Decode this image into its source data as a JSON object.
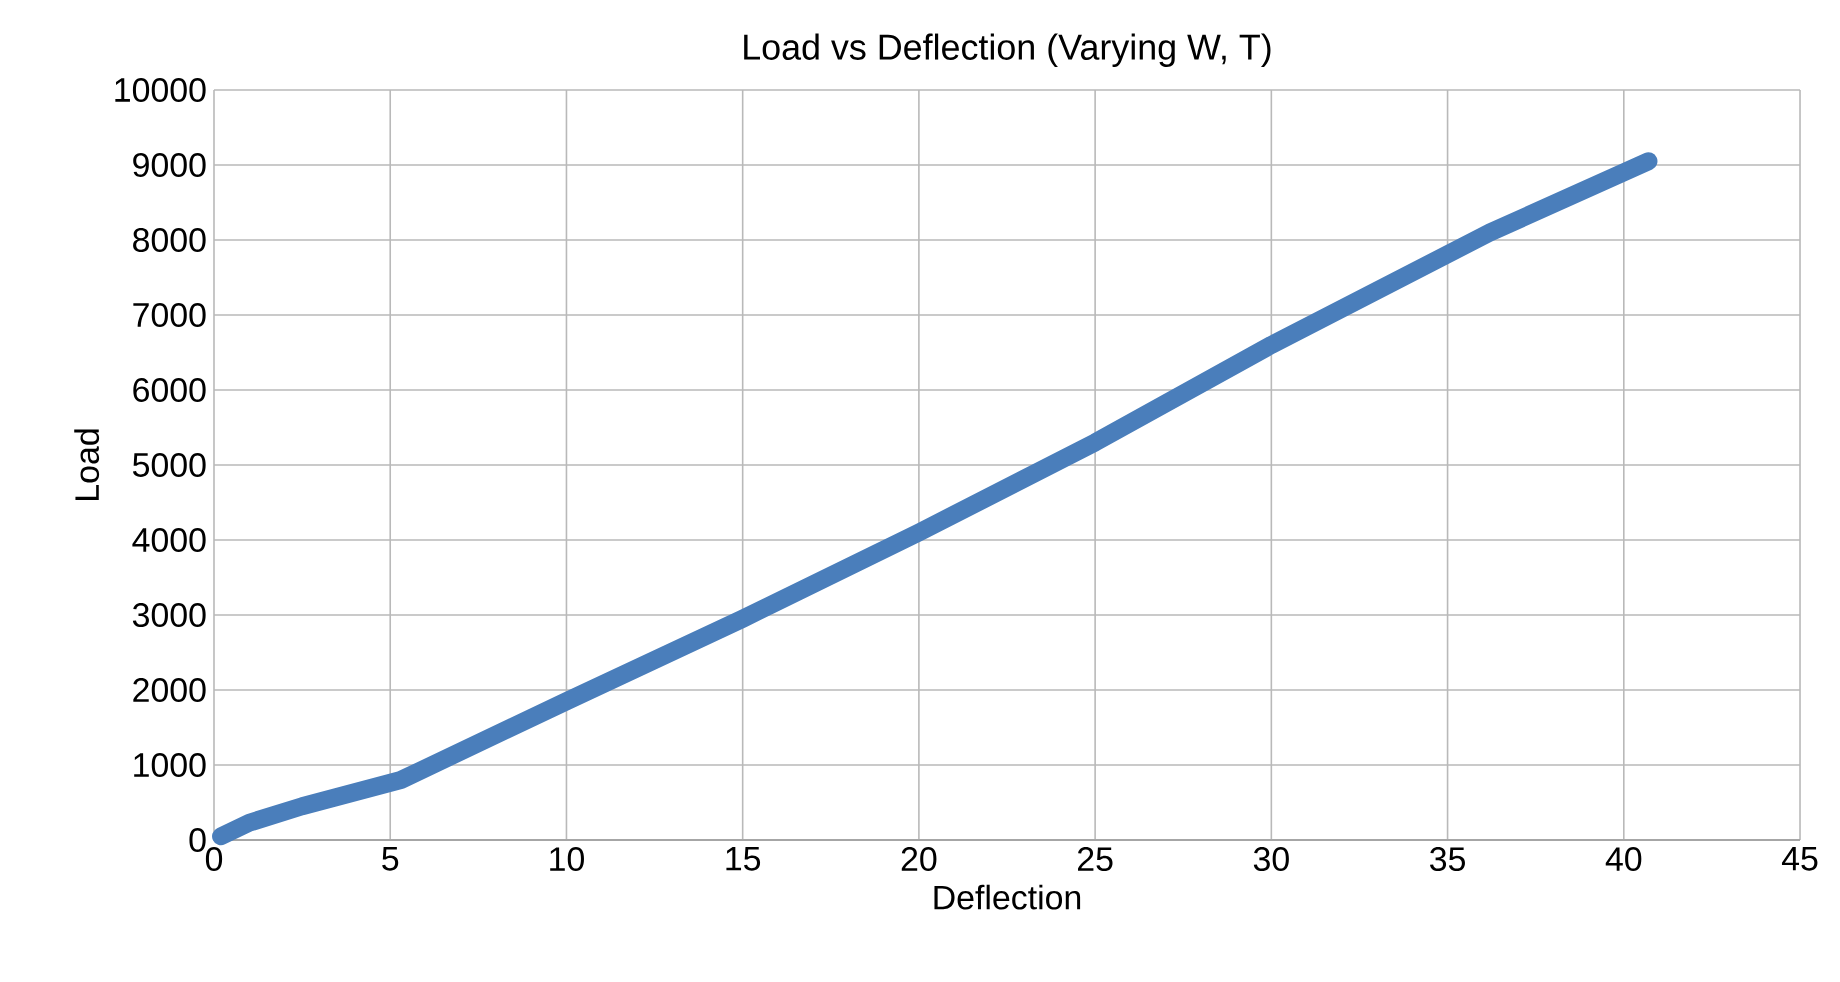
{
  "chart_data": {
    "type": "line",
    "title": "Load vs Deflection (Varying W, T)",
    "xlabel": "Deflection",
    "ylabel": "Load",
    "series": [
      {
        "color": "#4a7ebb",
        "x": [
          0.2,
          1,
          2.5,
          5.3,
          10,
          15,
          20,
          25,
          30,
          36.2,
          40.7
        ],
        "values": [
          50,
          230,
          450,
          800,
          1850,
          2950,
          4100,
          5300,
          6600,
          8100,
          9050
        ]
      }
    ],
    "xlim": [
      0,
      45
    ],
    "xticks": [
      0,
      5,
      10,
      15,
      20,
      25,
      30,
      35,
      40,
      45
    ],
    "ylim": [
      0,
      10000
    ],
    "yticks": [
      0,
      1000,
      2000,
      3000,
      4000,
      5000,
      6000,
      7000,
      8000,
      9000,
      10000
    ],
    "grid": true,
    "marker": "none",
    "line_style": "solid"
  }
}
